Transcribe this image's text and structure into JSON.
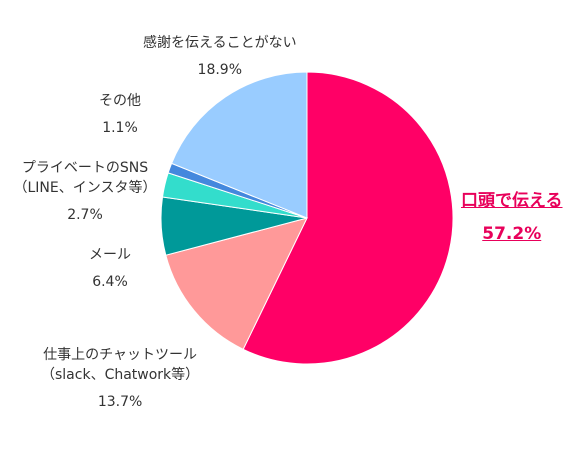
{
  "chart_data": {
    "type": "pie",
    "start_angle_deg": 0,
    "direction": "clockwise",
    "slices": [
      {
        "label": [
          "口頭で伝える"
        ],
        "value": 57.2,
        "display": "57.2%",
        "color": "#ff0066",
        "highlight": true
      },
      {
        "label": [
          "仕事上のチャットツール",
          "（slack、Chatwork等）"
        ],
        "value": 13.7,
        "display": "13.7%",
        "color": "#ff9999",
        "highlight": false
      },
      {
        "label": [
          "メール"
        ],
        "value": 6.4,
        "display": "6.4%",
        "color": "#009999",
        "highlight": false
      },
      {
        "label": [
          "プライベートのSNS",
          "（LINE、インスタ等）"
        ],
        "value": 2.7,
        "display": "2.7%",
        "color": "#33ddcc",
        "highlight": false
      },
      {
        "label": [
          "その他"
        ],
        "value": 1.1,
        "display": "1.1%",
        "color": "#4488dd",
        "highlight": false
      },
      {
        "label": [
          "感謝を伝えることがない"
        ],
        "value": 18.9,
        "display": "18.9%",
        "color": "#99ccff",
        "highlight": false
      }
    ]
  }
}
